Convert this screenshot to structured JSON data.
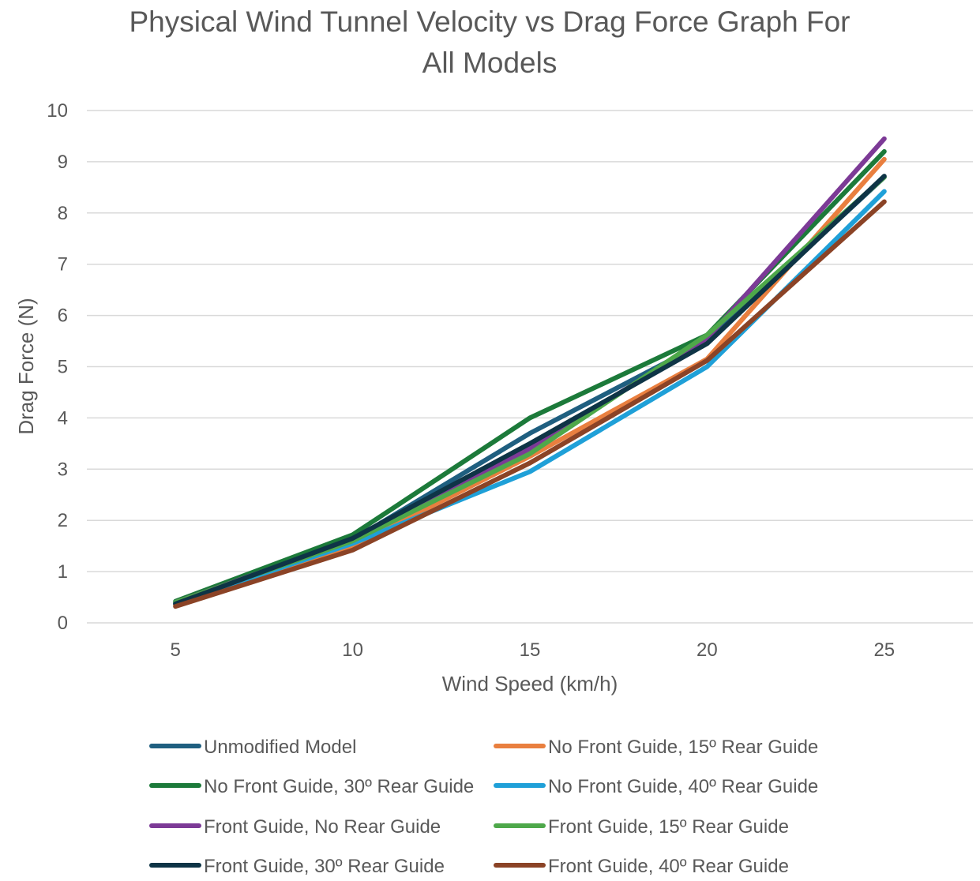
{
  "chart_data": {
    "type": "line",
    "title": "Physical Wind Tunnel Velocity vs Drag Force Graph For All Models",
    "title_lines": [
      "Physical Wind Tunnel Velocity vs Drag Force Graph For",
      "All Models"
    ],
    "xlabel": "Wind Speed (km/h)",
    "ylabel": "Drag Force (N)",
    "categories": [
      "5",
      "10",
      "15",
      "20",
      "25"
    ],
    "ylim": [
      0,
      10
    ],
    "y_ticks": [
      0,
      1,
      2,
      3,
      4,
      5,
      6,
      7,
      8,
      9,
      10
    ],
    "grid": true,
    "legend_position": "bottom",
    "series": [
      {
        "name": "Unmodified Model",
        "color": "#1f5f80",
        "values": [
          0.38,
          1.62,
          3.7,
          5.5,
          8.7
        ]
      },
      {
        "name": "No Front Guide, 15º Rear Guide",
        "color": "#e97f3f",
        "values": [
          0.35,
          1.5,
          3.25,
          5.15,
          9.05
        ]
      },
      {
        "name": "No Front Guide, 30º Rear Guide",
        "color": "#1c7a3a",
        "values": [
          0.42,
          1.72,
          4.0,
          5.62,
          9.2
        ]
      },
      {
        "name": "No Front Guide, 40º Rear Guide",
        "color": "#1fa0d8",
        "values": [
          0.38,
          1.55,
          2.95,
          5.0,
          8.42
        ]
      },
      {
        "name": "Front Guide, No Rear Guide",
        "color": "#7c3a96",
        "values": [
          0.4,
          1.62,
          3.4,
          5.55,
          9.45
        ]
      },
      {
        "name": "Front Guide, 15º Rear Guide",
        "color": "#4ea84a",
        "values": [
          0.4,
          1.6,
          3.3,
          5.62,
          8.7
        ]
      },
      {
        "name": "Front Guide, 30º Rear Guide",
        "color": "#0e3446",
        "values": [
          0.37,
          1.65,
          3.5,
          5.45,
          8.72
        ]
      },
      {
        "name": "Front Guide, 40º Rear Guide",
        "color": "#8b4326",
        "values": [
          0.32,
          1.42,
          3.12,
          5.12,
          8.22
        ]
      }
    ]
  }
}
